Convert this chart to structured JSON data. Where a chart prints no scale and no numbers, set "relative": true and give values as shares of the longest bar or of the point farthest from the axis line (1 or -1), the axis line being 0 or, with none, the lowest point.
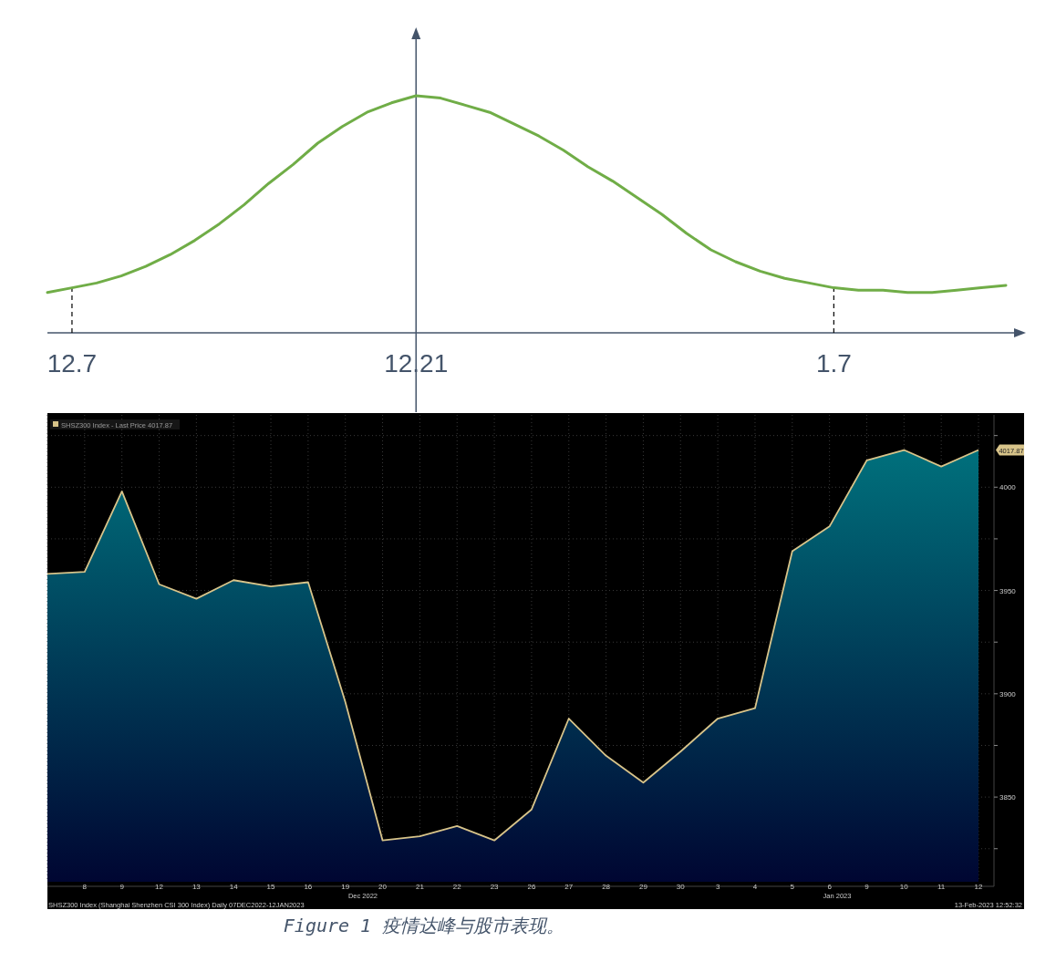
{
  "chart_data": [
    {
      "type": "line",
      "relative": true,
      "categories": [
        null,
        "12.7",
        null,
        null,
        null,
        null,
        null,
        null,
        null,
        null,
        null,
        null,
        null,
        null,
        null,
        "12.21",
        null,
        null,
        null,
        null,
        null,
        null,
        null,
        null,
        null,
        null,
        null,
        null,
        null,
        null,
        null,
        null,
        "1.7",
        null,
        null,
        null,
        null,
        null,
        null,
        null
      ],
      "series": [
        {
          "color": "#70ad47",
          "values": [
            0.17,
            0.19,
            0.21,
            0.24,
            0.28,
            0.33,
            0.39,
            0.46,
            0.54,
            0.63,
            0.71,
            0.8,
            0.87,
            0.93,
            0.97,
            1,
            0.99,
            0.96,
            0.93,
            0.88,
            0.83,
            0.77,
            0.7,
            0.64,
            0.57,
            0.5,
            0.42,
            0.35,
            0.3,
            0.26,
            0.23,
            0.21,
            0.19,
            0.18,
            0.18,
            0.17,
            0.17,
            0.18,
            0.19,
            0.2
          ]
        }
      ],
      "ref_lines": [
        {
          "axis": "x",
          "value": "12.7",
          "line_style": "dashed",
          "color": "#000000"
        },
        {
          "axis": "x",
          "value": "12.21",
          "line_style": "solid",
          "color": "#44546a"
        },
        {
          "axis": "x",
          "value": "1.7",
          "line_style": "dashed",
          "color": "#000000"
        }
      ],
      "grid": false,
      "legend": false
    },
    {
      "type": "area",
      "categories": [
        null,
        "8",
        "9",
        "12",
        "13",
        "14",
        "15",
        "16",
        "19",
        "20",
        "21",
        "22",
        "23",
        "26",
        "27",
        "28",
        "29",
        "30",
        "3",
        "4",
        "5",
        "6",
        "9",
        "10",
        "11",
        "12"
      ],
      "series": [
        {
          "name": "SHSZ300 Index - Last Price 4017.87",
          "color": "#d8c48a",
          "values": [
            3958,
            3959,
            3998,
            3953,
            3946,
            3955,
            3952,
            3954,
            3896,
            3829,
            3831,
            3836,
            3829,
            3844,
            3888,
            3870,
            3857,
            3872,
            3888,
            3893,
            3969,
            3981,
            4013,
            4018,
            4010,
            4018
          ]
        }
      ],
      "ylim": [
        3809,
        4035
      ],
      "yticks": [
        {
          "value": 3825,
          "label": null
        },
        3850,
        {
          "value": 3875,
          "label": null
        },
        3900,
        {
          "value": 3925,
          "label": null
        },
        3950,
        {
          "value": 3975,
          "label": null
        },
        4000,
        {
          "value": 4025,
          "label": null
        }
      ],
      "grid": true,
      "legend": "top left",
      "annotations": [
        "4017.87",
        "Dec 2022",
        "Jan 2023",
        "SHSZ300 Index (Shanghai Shenzhen CSI 300 Index)  Daily 07DEC2022-12JAN2023",
        "13-Feb-2023 12:52:32",
        "Figure 1 疫情达峰与股市表现。"
      ]
    }
  ]
}
